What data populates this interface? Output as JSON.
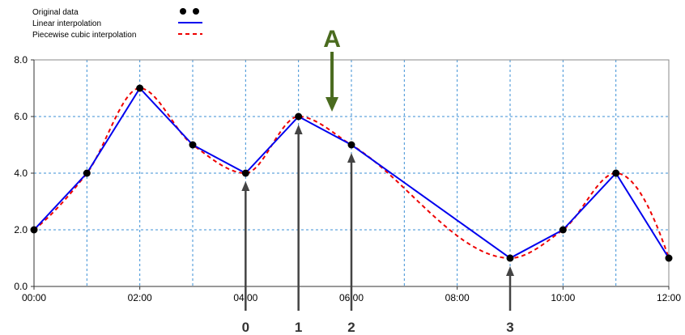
{
  "chart_data": {
    "type": "line",
    "title": "",
    "xlabel": "",
    "ylabel": "",
    "x": [
      "00:00",
      "01:00",
      "02:00",
      "03:00",
      "04:00",
      "05:00",
      "06:00",
      "07:00",
      "08:00",
      "09:00",
      "10:00",
      "11:00",
      "12:00"
    ],
    "points": [
      {
        "t": "00:00",
        "y": 2.0
      },
      {
        "t": "01:00",
        "y": 4.0
      },
      {
        "t": "02:00",
        "y": 7.0
      },
      {
        "t": "03:00",
        "y": 5.0
      },
      {
        "t": "04:00",
        "y": 4.0
      },
      {
        "t": "05:00",
        "y": 6.0
      },
      {
        "t": "06:00",
        "y": 5.0
      },
      {
        "t": "09:00",
        "y": 1.0
      },
      {
        "t": "10:00",
        "y": 2.0
      },
      {
        "t": "11:00",
        "y": 4.0
      },
      {
        "t": "12:00",
        "y": 1.0
      }
    ],
    "series": [
      {
        "name": "Original data",
        "style": "markers",
        "color": "#000000"
      },
      {
        "name": "Linear interpolation",
        "style": "solid",
        "color": "#0000ee"
      },
      {
        "name": "Piecewise cubic interpolation",
        "style": "dashed",
        "color": "#ee0000"
      }
    ],
    "x_ticks": [
      "00:00",
      "02:00",
      "04:00",
      "06:00",
      "08:00",
      "10:00",
      "12:00"
    ],
    "y_ticks": [
      "0.0",
      "2.0",
      "4.0",
      "6.0",
      "8.0"
    ],
    "xlim": [
      "00:00",
      "12:00"
    ],
    "ylim": [
      0,
      8
    ],
    "grid": true,
    "legend_position": "top-left",
    "annotations": {
      "callout": {
        "label": "A",
        "at_time": "05:38",
        "y": 6.0,
        "direction": "down",
        "color": "#4a6b1f"
      },
      "markers": [
        {
          "label": "0",
          "at_time": "04:00",
          "y": 4.0
        },
        {
          "label": "1",
          "at_time": "05:00",
          "y": 6.0
        },
        {
          "label": "2",
          "at_time": "06:00",
          "y": 5.0
        },
        {
          "label": "3",
          "at_time": "09:00",
          "y": 1.0
        }
      ]
    }
  }
}
